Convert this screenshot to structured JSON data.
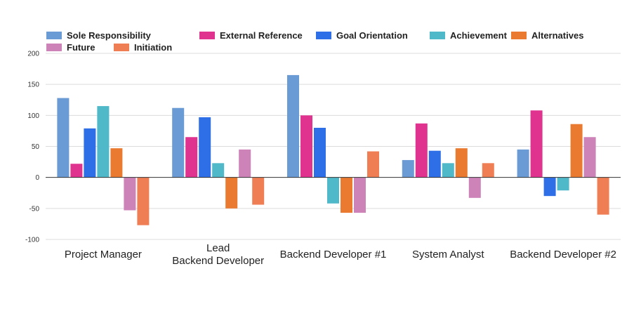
{
  "chart_data": {
    "type": "bar",
    "title": "",
    "xlabel": "",
    "ylabel": "",
    "ylim": [
      -100,
      200
    ],
    "yticks": [
      200,
      150,
      100,
      50,
      0,
      -50,
      -100
    ],
    "grid": true,
    "legend_position": "top",
    "categories": [
      [
        "Project Manager"
      ],
      [
        "Lead",
        "Backend Developer"
      ],
      [
        "Backend Developer #1"
      ],
      [
        "System Analyst"
      ],
      [
        "Backend Developer #2"
      ]
    ],
    "series": [
      {
        "name": "Sole Responsibility",
        "color": "#6a9bd4",
        "values": [
          128,
          112,
          165,
          28,
          45
        ]
      },
      {
        "name": "External Reference",
        "color": "#e0338f",
        "values": [
          22,
          65,
          100,
          87,
          108
        ]
      },
      {
        "name": "Goal Orientation",
        "color": "#2e6fe8",
        "values": [
          79,
          97,
          80,
          43,
          -30
        ]
      },
      {
        "name": "Achievement",
        "color": "#4fb8c9",
        "values": [
          115,
          23,
          -42,
          23,
          -21
        ]
      },
      {
        "name": "Alternatives",
        "color": "#ea7a2f",
        "values": [
          47,
          -50,
          -57,
          47,
          86
        ]
      },
      {
        "name": "Future",
        "color": "#cd82b8",
        "values": [
          -53,
          45,
          -57,
          -33,
          65
        ]
      },
      {
        "name": "Initiation",
        "color": "#f07e55",
        "values": [
          -77,
          -44,
          42,
          23,
          -60
        ]
      }
    ]
  }
}
